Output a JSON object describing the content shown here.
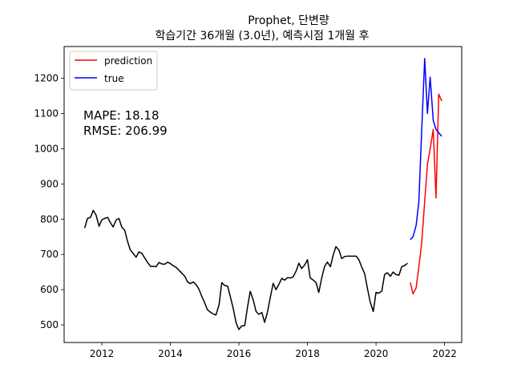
{
  "chart_data": {
    "type": "line",
    "title": "Prophet, 단변량",
    "subtitle": "학습기간 36개월 (3.0년), 예측시점 1개월 후",
    "xlabel": "",
    "ylabel": "",
    "xlim": [
      2010.9,
      2022.5
    ],
    "ylim": [
      450,
      1290
    ],
    "x_ticks": [
      2012,
      2014,
      2016,
      2018,
      2020,
      2022
    ],
    "x_tick_labels": [
      "2012",
      "2014",
      "2016",
      "2018",
      "2020",
      "2022"
    ],
    "y_ticks": [
      500,
      600,
      700,
      800,
      900,
      1000,
      1100,
      1200
    ],
    "y_tick_labels": [
      "500",
      "600",
      "700",
      "800",
      "900",
      "1000",
      "1100",
      "1200"
    ],
    "grid": false,
    "legend_position": "top-left",
    "annotations": [
      "MAPE: 18.18",
      "RMSE: 206.99"
    ],
    "series": [
      {
        "name": "",
        "color": "#000000",
        "x": [
          2011.5,
          2011.58,
          2011.67,
          2011.75,
          2011.83,
          2011.92,
          2012.0,
          2012.08,
          2012.17,
          2012.25,
          2012.33,
          2012.42,
          2012.5,
          2012.58,
          2012.67,
          2012.75,
          2012.83,
          2012.92,
          2013.0,
          2013.08,
          2013.17,
          2013.25,
          2013.33,
          2013.42,
          2013.5,
          2013.58,
          2013.67,
          2013.75,
          2013.83,
          2013.92,
          2014.0,
          2014.08,
          2014.17,
          2014.25,
          2014.33,
          2014.42,
          2014.5,
          2014.58,
          2014.67,
          2014.75,
          2014.83,
          2014.92,
          2015.0,
          2015.08,
          2015.17,
          2015.25,
          2015.33,
          2015.42,
          2015.5,
          2015.58,
          2015.67,
          2015.75,
          2015.83,
          2015.92,
          2016.0,
          2016.08,
          2016.17,
          2016.25,
          2016.33,
          2016.42,
          2016.5,
          2016.58,
          2016.67,
          2016.75,
          2016.83,
          2016.92,
          2017.0,
          2017.08,
          2017.17,
          2017.25,
          2017.33,
          2017.42,
          2017.5,
          2017.58,
          2017.67,
          2017.75,
          2017.83,
          2017.92,
          2018.0,
          2018.08,
          2018.17,
          2018.25,
          2018.33,
          2018.42,
          2018.5,
          2018.58,
          2018.67,
          2018.75,
          2018.83,
          2018.92,
          2019.0,
          2019.08,
          2019.17,
          2019.25,
          2019.33,
          2019.42,
          2019.5,
          2019.58,
          2019.67,
          2019.75,
          2019.83,
          2019.92,
          2020.0,
          2020.08,
          2020.17,
          2020.25,
          2020.33,
          2020.42,
          2020.5,
          2020.58,
          2020.67,
          2020.75,
          2020.83,
          2020.92
        ],
        "values": [
          775,
          802,
          805,
          825,
          812,
          780,
          798,
          802,
          805,
          790,
          778,
          798,
          802,
          778,
          768,
          737,
          713,
          702,
          692,
          707,
          703,
          690,
          678,
          666,
          666,
          665,
          677,
          673,
          672,
          678,
          674,
          668,
          663,
          655,
          647,
          638,
          622,
          617,
          622,
          614,
          602,
          580,
          563,
          543,
          536,
          531,
          528,
          557,
          620,
          612,
          610,
          580,
          548,
          505,
          487,
          497,
          498,
          550,
          595,
          570,
          538,
          530,
          535,
          507,
          535,
          580,
          618,
          600,
          616,
          632,
          627,
          634,
          633,
          636,
          653,
          675,
          660,
          670,
          685,
          633,
          627,
          620,
          592,
          635,
          666,
          678,
          665,
          698,
          722,
          712,
          688,
          694,
          695,
          695,
          695,
          695,
          685,
          665,
          645,
          603,
          565,
          538,
          592,
          590,
          596,
          643,
          648,
          638,
          650,
          643,
          641,
          665,
          668,
          675
        ]
      },
      {
        "name": "prediction",
        "color": "#ff0000",
        "x": [
          2021.0,
          2021.08,
          2021.17,
          2021.25,
          2021.33,
          2021.42,
          2021.5,
          2021.58,
          2021.67,
          2021.75,
          2021.83,
          2021.92
        ],
        "values": [
          620,
          588,
          605,
          665,
          730,
          850,
          955,
          1000,
          1055,
          860,
          1155,
          1135
        ]
      },
      {
        "name": "true",
        "color": "#0000ff",
        "x": [
          2021.0,
          2021.08,
          2021.17,
          2021.25,
          2021.33,
          2021.42,
          2021.5,
          2021.58,
          2021.67,
          2021.75,
          2021.83,
          2021.92
        ],
        "values": [
          742,
          750,
          782,
          850,
          1045,
          1256,
          1100,
          1203,
          1080,
          1055,
          1045,
          1035
        ]
      }
    ]
  }
}
